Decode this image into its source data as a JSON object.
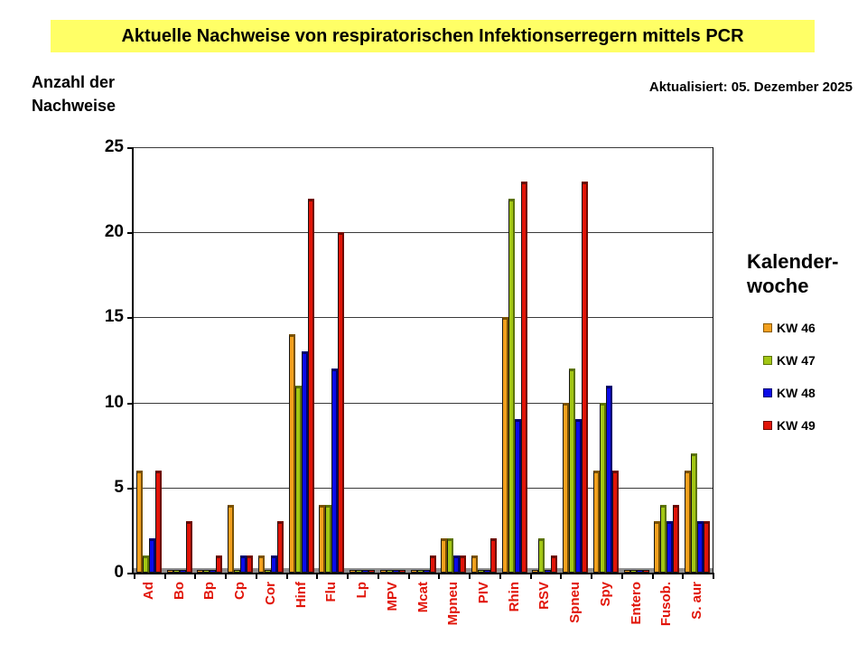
{
  "title": "Aktuelle Nachweise von respiratorischen Infektionserregern mittels PCR",
  "updated_label": "Aktualisiert:  05. Dezember 2025",
  "y_axis_title": {
    "line1": "Anzahl der",
    "line2": "Nachweise"
  },
  "legend": {
    "title_line1": "Kalender-",
    "title_line2": "woche",
    "items": [
      {
        "label": "KW 46",
        "color": "#F2A01E",
        "border": "#8A5A00"
      },
      {
        "label": "KW 47",
        "color": "#A2C614",
        "border": "#5C7306"
      },
      {
        "label": "KW 48",
        "color": "#0B0BE8",
        "border": "#00006E"
      },
      {
        "label": "KW 49",
        "color": "#E11408",
        "border": "#6E0A00"
      }
    ]
  },
  "chart_data": {
    "type": "bar",
    "title": "Aktuelle Nachweise von respiratorischen Infektionserregern mittels PCR",
    "xlabel": "",
    "ylabel": "Anzahl der Nachweise",
    "ylim": [
      0,
      25
    ],
    "yticks": [
      0,
      5,
      10,
      15,
      20,
      25
    ],
    "grid": true,
    "legend_position": "right",
    "categories": [
      "Ad",
      "Bo",
      "Bp",
      "Cp",
      "Cor",
      "Hinf",
      "Flu",
      "Lp",
      "MPV",
      "Mcat",
      "Mpneu",
      "PIV",
      "Rhin",
      "RSV",
      "Spneu",
      "Spy",
      "Entero",
      "Fusob.",
      "S. aur"
    ],
    "series": [
      {
        "name": "KW 46",
        "color": "#F2A01E",
        "dark": "#7A5200",
        "values": [
          6,
          0,
          0,
          4,
          1,
          14,
          4,
          0,
          0,
          0,
          2,
          1,
          15,
          0,
          10,
          6,
          0,
          3,
          6
        ]
      },
      {
        "name": "KW 47",
        "color": "#A2C614",
        "dark": "#5C7306",
        "values": [
          1,
          0,
          0,
          0,
          0,
          11,
          4,
          0,
          0,
          0,
          2,
          0,
          22,
          2,
          12,
          10,
          0,
          4,
          7
        ]
      },
      {
        "name": "KW 48",
        "color": "#0B0BE8",
        "dark": "#00006E",
        "values": [
          2,
          0,
          0,
          1,
          1,
          13,
          12,
          0,
          0,
          0,
          1,
          0,
          9,
          0,
          9,
          11,
          0,
          3,
          3
        ]
      },
      {
        "name": "KW 49",
        "color": "#E11408",
        "dark": "#6E0A00",
        "values": [
          6,
          3,
          1,
          1,
          3,
          22,
          20,
          0,
          0,
          1,
          1,
          2,
          23,
          1,
          23,
          6,
          0,
          4,
          3
        ]
      }
    ]
  }
}
